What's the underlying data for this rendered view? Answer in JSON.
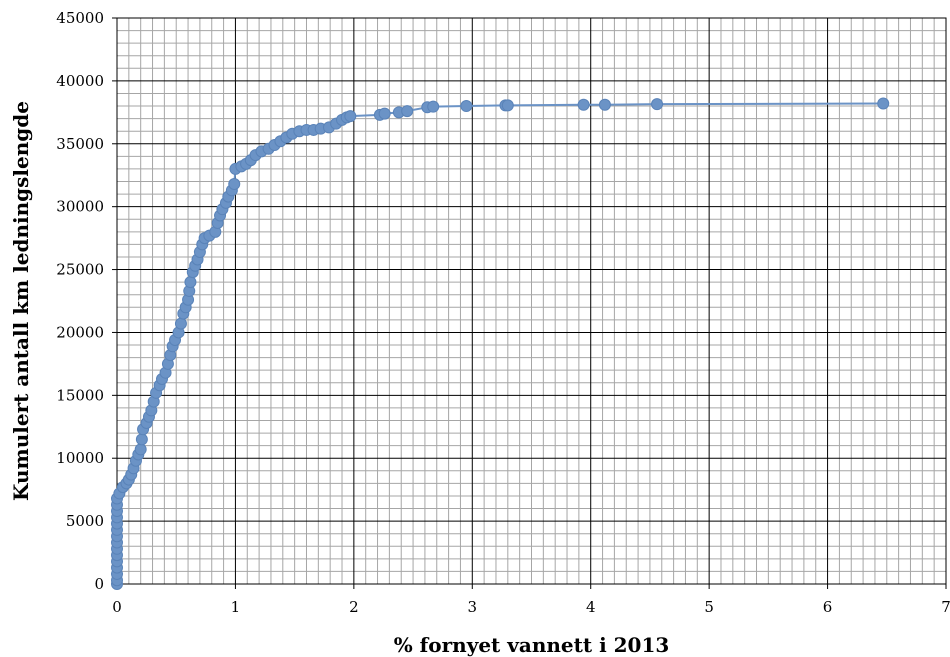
{
  "chart_data": {
    "type": "scatter",
    "title": "",
    "xlabel": "% fornyet vannett i 2013",
    "ylabel": "Kumulert antall km ledningslengde",
    "xlim": [
      0,
      7
    ],
    "ylim": [
      0,
      45000
    ],
    "x_ticks": [
      "0",
      "1",
      "2",
      "3",
      "4",
      "5",
      "6",
      "7"
    ],
    "y_ticks": [
      "0",
      "5000",
      "10000",
      "15000",
      "20000",
      "25000",
      "30000",
      "35000",
      "40000",
      "45000"
    ],
    "grid": true,
    "legend": "none",
    "series": [
      {
        "color": "#6b93c6",
        "marker": "circle",
        "line": true,
        "points": [
          [
            0,
            0
          ],
          [
            0,
            300
          ],
          [
            0,
            800
          ],
          [
            0,
            1300
          ],
          [
            0,
            1800
          ],
          [
            0,
            2300
          ],
          [
            0,
            2800
          ],
          [
            0,
            3300
          ],
          [
            0,
            3800
          ],
          [
            0,
            4300
          ],
          [
            0,
            4800
          ],
          [
            0,
            5300
          ],
          [
            0,
            5800
          ],
          [
            0,
            6300
          ],
          [
            0,
            6800
          ],
          [
            0.02,
            7200
          ],
          [
            0.05,
            7700
          ],
          [
            0.08,
            8000
          ],
          [
            0.1,
            8300
          ],
          [
            0.12,
            8700
          ],
          [
            0.14,
            9200
          ],
          [
            0.16,
            9800
          ],
          [
            0.18,
            10300
          ],
          [
            0.2,
            10700
          ],
          [
            0.21,
            11500
          ],
          [
            0.22,
            12300
          ],
          [
            0.25,
            12800
          ],
          [
            0.27,
            13300
          ],
          [
            0.29,
            13800
          ],
          [
            0.31,
            14500
          ],
          [
            0.33,
            15200
          ],
          [
            0.36,
            15800
          ],
          [
            0.38,
            16300
          ],
          [
            0.41,
            16800
          ],
          [
            0.43,
            17500
          ],
          [
            0.45,
            18200
          ],
          [
            0.47,
            18900
          ],
          [
            0.49,
            19400
          ],
          [
            0.52,
            20000
          ],
          [
            0.54,
            20700
          ],
          [
            0.56,
            21500
          ],
          [
            0.58,
            22000
          ],
          [
            0.6,
            22600
          ],
          [
            0.61,
            23300
          ],
          [
            0.62,
            24000
          ],
          [
            0.64,
            24800
          ],
          [
            0.66,
            25300
          ],
          [
            0.68,
            25800
          ],
          [
            0.7,
            26400
          ],
          [
            0.72,
            27000
          ],
          [
            0.74,
            27500
          ],
          [
            0.78,
            27700
          ],
          [
            0.83,
            28000
          ],
          [
            0.85,
            28700
          ],
          [
            0.87,
            29300
          ],
          [
            0.89,
            29800
          ],
          [
            0.92,
            30300
          ],
          [
            0.94,
            30800
          ],
          [
            0.97,
            31300
          ],
          [
            0.99,
            31800
          ],
          [
            1.0,
            33000
          ],
          [
            1.05,
            33200
          ],
          [
            1.09,
            33400
          ],
          [
            1.13,
            33700
          ],
          [
            1.17,
            34100
          ],
          [
            1.22,
            34400
          ],
          [
            1.28,
            34600
          ],
          [
            1.33,
            34900
          ],
          [
            1.38,
            35200
          ],
          [
            1.43,
            35500
          ],
          [
            1.48,
            35800
          ],
          [
            1.54,
            36000
          ],
          [
            1.6,
            36100
          ],
          [
            1.66,
            36100
          ],
          [
            1.72,
            36200
          ],
          [
            1.79,
            36300
          ],
          [
            1.85,
            36600
          ],
          [
            1.9,
            36900
          ],
          [
            1.94,
            37100
          ],
          [
            1.97,
            37200
          ],
          [
            2.22,
            37300
          ],
          [
            2.26,
            37400
          ],
          [
            2.38,
            37500
          ],
          [
            2.45,
            37600
          ],
          [
            2.62,
            37900
          ],
          [
            2.67,
            37950
          ],
          [
            2.95,
            38000
          ],
          [
            3.28,
            38050
          ],
          [
            3.3,
            38050
          ],
          [
            3.94,
            38100
          ],
          [
            4.12,
            38100
          ],
          [
            4.56,
            38150
          ],
          [
            6.47,
            38200
          ]
        ]
      }
    ]
  }
}
